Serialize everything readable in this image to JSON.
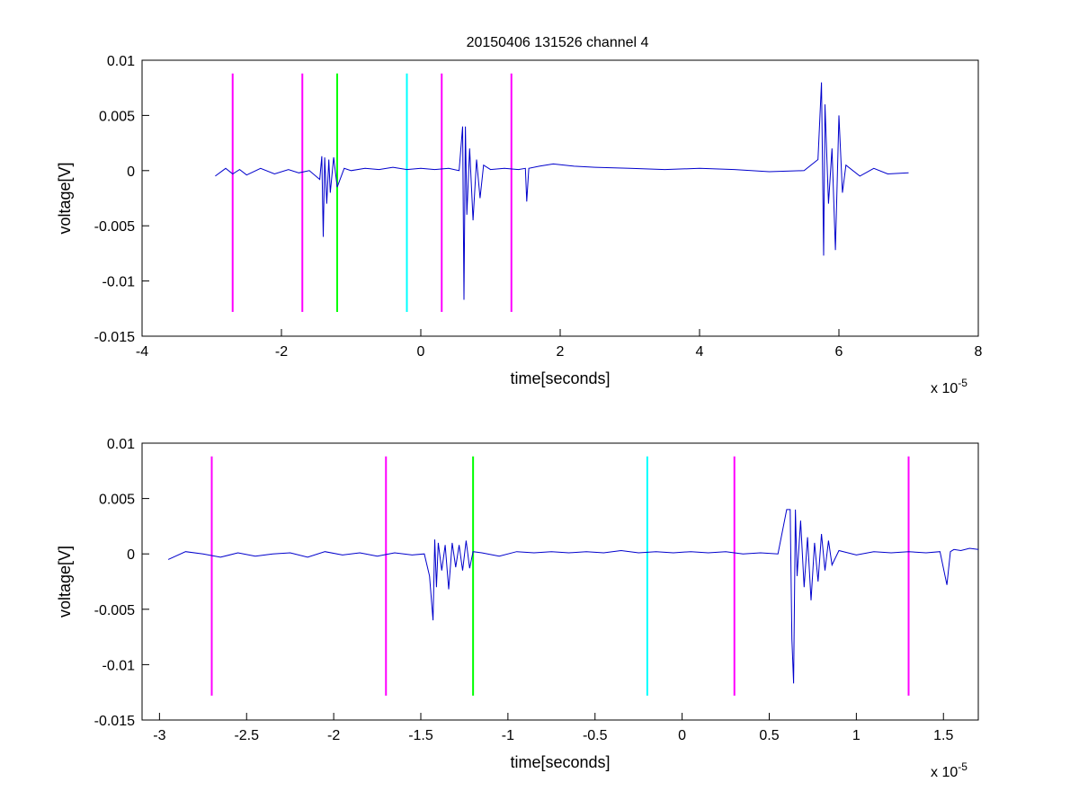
{
  "figure_title": "20150406 131526 channel 4",
  "colors": {
    "signal": "#0000cc",
    "magenta": "#ff00ff",
    "green": "#00ff00",
    "cyan": "#00ffff",
    "axis": "#000000"
  },
  "chart_data": [
    {
      "type": "line",
      "title": "20150406 131526 channel 4",
      "xlabel": "time[seconds]",
      "ylabel": "voltage[V]",
      "x_exponent_label": "x 10",
      "x_exponent": "-5",
      "xlim": [
        -4,
        8
      ],
      "ylim": [
        -0.015,
        0.01
      ],
      "xticks": [
        -4,
        -2,
        0,
        2,
        4,
        6,
        8
      ],
      "xtick_labels": [
        "-4",
        "-2",
        "0",
        "2",
        "4",
        "6",
        "8"
      ],
      "yticks": [
        0.01,
        0.005,
        0,
        -0.005,
        -0.01,
        -0.015
      ],
      "ytick_labels": [
        "0.01",
        "0.005",
        "0",
        "-0.005",
        "-0.01",
        "-0.015"
      ],
      "grid": false,
      "series": [
        {
          "color": "#0000cc",
          "x": [
            -2.95,
            -2.8,
            -2.7,
            -2.6,
            -2.5,
            -2.3,
            -2.1,
            -1.9,
            -1.75,
            -1.6,
            -1.45,
            -1.42,
            -1.4,
            -1.38,
            -1.35,
            -1.32,
            -1.3,
            -1.25,
            -1.2,
            -1.1,
            -1.0,
            -0.8,
            -0.6,
            -0.4,
            -0.2,
            0.0,
            0.2,
            0.4,
            0.55,
            0.6,
            0.62,
            0.64,
            0.66,
            0.7,
            0.75,
            0.8,
            0.85,
            0.9,
            1.0,
            1.2,
            1.4,
            1.5,
            1.52,
            1.55,
            1.7,
            1.9,
            2.2,
            2.5,
            3.0,
            3.5,
            4.0,
            4.5,
            5.0,
            5.5,
            5.7,
            5.75,
            5.78,
            5.8,
            5.85,
            5.9,
            5.95,
            6.0,
            6.05,
            6.1,
            6.3,
            6.5,
            6.7,
            7.0
          ],
          "y": [
            -0.0005,
            0.0002,
            -0.0003,
            0.0001,
            -0.0004,
            0.0002,
            -0.0003,
            0.0001,
            -0.0002,
            0.0,
            -0.0008,
            0.0013,
            -0.006,
            0.0012,
            -0.003,
            0.001,
            -0.002,
            0.0012,
            -0.0015,
            0.0002,
            0.0,
            0.0002,
            0.0001,
            0.0003,
            0.0001,
            0.0002,
            0.0001,
            0.0002,
            0.0,
            0.004,
            -0.0117,
            0.004,
            -0.004,
            0.002,
            -0.0045,
            0.001,
            -0.0025,
            0.0005,
            0.0001,
            0.0002,
            0.0001,
            0.0002,
            -0.0028,
            0.0002,
            0.0004,
            0.0006,
            0.0004,
            0.0003,
            0.0002,
            0.0001,
            0.0002,
            0.0001,
            -0.0001,
            0.0,
            0.001,
            0.008,
            -0.0077,
            0.006,
            -0.003,
            0.002,
            -0.0072,
            0.005,
            -0.002,
            0.0005,
            -0.0005,
            0.0002,
            -0.0003,
            -0.0002
          ]
        }
      ],
      "vertical_markers": [
        {
          "x": -2.7,
          "color": "#ff00ff"
        },
        {
          "x": -1.7,
          "color": "#ff00ff"
        },
        {
          "x": -1.2,
          "color": "#00ff00"
        },
        {
          "x": -0.2,
          "color": "#00ffff"
        },
        {
          "x": 0.3,
          "color": "#ff00ff"
        },
        {
          "x": 1.3,
          "color": "#ff00ff"
        }
      ],
      "marker_yrange": [
        -0.0128,
        0.0088
      ]
    },
    {
      "type": "line",
      "title": "",
      "xlabel": "time[seconds]",
      "ylabel": "voltage[V]",
      "x_exponent_label": "x 10",
      "x_exponent": "-5",
      "xlim": [
        -3.1,
        1.7
      ],
      "ylim": [
        -0.015,
        0.01
      ],
      "xticks": [
        -3,
        -2.5,
        -2,
        -1.5,
        -1,
        -0.5,
        0,
        0.5,
        1,
        1.5
      ],
      "xtick_labels": [
        "-3",
        "-2.5",
        "-2",
        "-1.5",
        "-1",
        "-0.5",
        "0",
        "0.5",
        "1",
        "1.5"
      ],
      "yticks": [
        0.01,
        0.005,
        0,
        -0.005,
        -0.01,
        -0.015
      ],
      "ytick_labels": [
        "0.01",
        "0.005",
        "0",
        "-0.005",
        "-0.01",
        "-0.015"
      ],
      "grid": false,
      "series": [
        {
          "color": "#0000cc",
          "x": [
            -2.95,
            -2.85,
            -2.75,
            -2.65,
            -2.55,
            -2.45,
            -2.35,
            -2.25,
            -2.15,
            -2.05,
            -1.95,
            -1.85,
            -1.75,
            -1.65,
            -1.55,
            -1.48,
            -1.45,
            -1.43,
            -1.42,
            -1.41,
            -1.4,
            -1.38,
            -1.36,
            -1.34,
            -1.32,
            -1.3,
            -1.28,
            -1.26,
            -1.24,
            -1.22,
            -1.2,
            -1.15,
            -1.05,
            -0.95,
            -0.85,
            -0.75,
            -0.65,
            -0.55,
            -0.45,
            -0.35,
            -0.25,
            -0.15,
            -0.05,
            0.05,
            0.15,
            0.25,
            0.35,
            0.45,
            0.55,
            0.6,
            0.62,
            0.63,
            0.64,
            0.65,
            0.66,
            0.68,
            0.7,
            0.72,
            0.74,
            0.76,
            0.78,
            0.8,
            0.82,
            0.84,
            0.86,
            0.9,
            1.0,
            1.1,
            1.2,
            1.3,
            1.4,
            1.48,
            1.52,
            1.54,
            1.56,
            1.6,
            1.65,
            1.7
          ],
          "y": [
            -0.0005,
            0.0002,
            0.0,
            -0.0003,
            0.0001,
            -0.0002,
            0.0,
            0.0001,
            -0.0003,
            0.0002,
            -0.0001,
            0.0001,
            -0.0002,
            0.0001,
            -0.0001,
            0.0,
            -0.002,
            -0.006,
            0.0013,
            -0.003,
            0.001,
            -0.0015,
            0.0008,
            -0.0032,
            0.001,
            -0.0012,
            0.0008,
            -0.0015,
            0.0012,
            -0.0013,
            0.0002,
            0.0001,
            -0.0002,
            0.0002,
            0.0001,
            0.0002,
            0.0001,
            0.0002,
            0.0001,
            0.0003,
            0.0001,
            0.0002,
            0.0001,
            0.0002,
            0.0001,
            0.0002,
            0.0,
            0.0001,
            0.0,
            0.004,
            0.004,
            -0.0077,
            -0.0117,
            0.004,
            -0.002,
            0.003,
            -0.003,
            0.0015,
            -0.0042,
            0.001,
            -0.0025,
            0.0018,
            -0.0015,
            0.0012,
            -0.001,
            0.0003,
            -0.0001,
            0.0002,
            0.0001,
            0.0002,
            0.0001,
            0.0002,
            -0.0028,
            0.0002,
            0.0004,
            0.0003,
            0.0005,
            0.0004
          ]
        }
      ],
      "vertical_markers": [
        {
          "x": -2.7,
          "color": "#ff00ff"
        },
        {
          "x": -1.7,
          "color": "#ff00ff"
        },
        {
          "x": -1.2,
          "color": "#00ff00"
        },
        {
          "x": -0.2,
          "color": "#00ffff"
        },
        {
          "x": 0.3,
          "color": "#ff00ff"
        },
        {
          "x": 1.3,
          "color": "#ff00ff"
        }
      ],
      "marker_yrange": [
        -0.0128,
        0.0088
      ]
    }
  ]
}
